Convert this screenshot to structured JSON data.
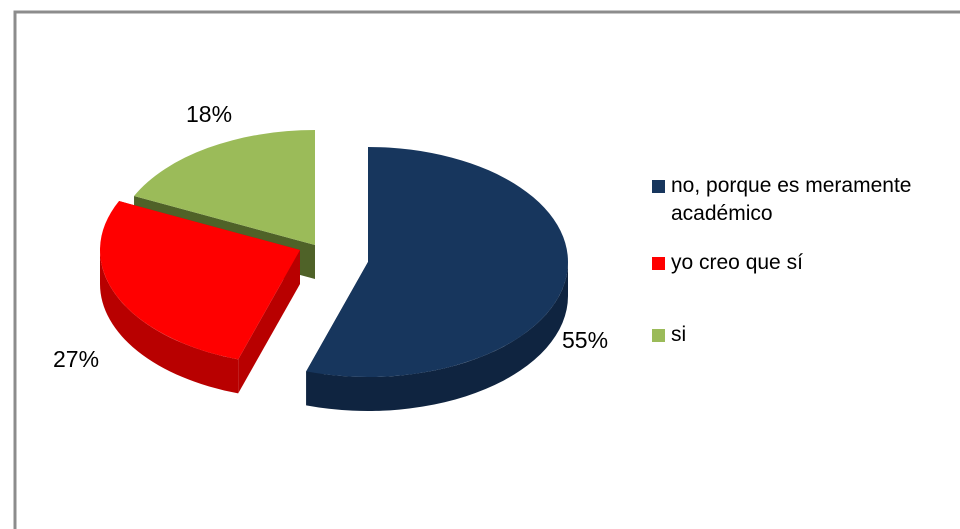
{
  "chart_data": {
    "type": "pie",
    "style": "3d-exploded",
    "categories": [
      "no, porque es meramente académico",
      "yo creo que sí",
      "si"
    ],
    "values": [
      55,
      27,
      18
    ],
    "labels": [
      "55%",
      "27%",
      "18%"
    ],
    "colors": [
      "#17365D",
      "#FF0000",
      "#9BBB59"
    ],
    "side_colors": [
      "#0F2440",
      "#B80000",
      "#4F6228"
    ],
    "legend_position": "right",
    "title": ""
  }
}
